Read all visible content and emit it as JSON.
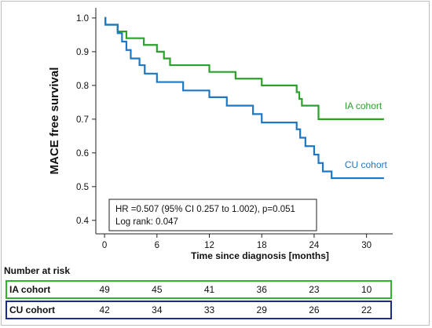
{
  "chart_data": {
    "type": "line",
    "subtype": "kaplan-meier",
    "title": "",
    "xlabel": "Time since diagnosis [months]",
    "ylabel": "MACE free survival",
    "xlim": [
      -1,
      33
    ],
    "ylim": [
      0.36,
      1.03
    ],
    "x_ticks": [
      0,
      6,
      12,
      18,
      24,
      30
    ],
    "y_ticks": [
      0.4,
      0.5,
      0.6,
      0.7,
      0.8,
      0.9,
      1.0
    ],
    "y_tick_labels": [
      "0.4",
      "0.5",
      "0.6",
      "0.7",
      "0.8",
      "0.9",
      "1.0"
    ],
    "grid": false,
    "series": [
      {
        "name": "IA cohort",
        "color": "#2ca02c",
        "steps": [
          [
            0,
            1.0
          ],
          [
            0.1,
            0.98
          ],
          [
            1.5,
            0.96
          ],
          [
            2.5,
            0.94
          ],
          [
            4.5,
            0.92
          ],
          [
            6.0,
            0.9
          ],
          [
            6.8,
            0.88
          ],
          [
            7.5,
            0.86
          ],
          [
            12.0,
            0.84
          ],
          [
            15.0,
            0.82
          ],
          [
            18.0,
            0.8
          ],
          [
            22.0,
            0.78
          ],
          [
            22.3,
            0.76
          ],
          [
            22.6,
            0.74
          ],
          [
            24.5,
            0.7
          ],
          [
            32.0,
            0.7
          ]
        ]
      },
      {
        "name": "CU cohort",
        "color": "#1f77c4",
        "steps": [
          [
            0,
            1.0
          ],
          [
            0.1,
            0.98
          ],
          [
            1.5,
            0.955
          ],
          [
            2.0,
            0.93
          ],
          [
            2.5,
            0.905
          ],
          [
            3.0,
            0.88
          ],
          [
            4.0,
            0.86
          ],
          [
            4.6,
            0.835
          ],
          [
            6.0,
            0.81
          ],
          [
            9.0,
            0.785
          ],
          [
            12.0,
            0.765
          ],
          [
            14.0,
            0.74
          ],
          [
            17.0,
            0.715
          ],
          [
            18.0,
            0.69
          ],
          [
            22.0,
            0.67
          ],
          [
            22.4,
            0.645
          ],
          [
            23.0,
            0.62
          ],
          [
            24.0,
            0.595
          ],
          [
            24.5,
            0.57
          ],
          [
            25.0,
            0.545
          ],
          [
            26.0,
            0.525
          ],
          [
            32.0,
            0.525
          ]
        ]
      }
    ],
    "annotations": {
      "hr_line": "HR =0.507 (95% CI 0.257 to 1.002), p=0.051",
      "logrank_line": "Log rank: 0.047"
    },
    "risk_table": {
      "title": "Number at risk",
      "rows": [
        {
          "label": "IA cohort",
          "border_color": "#2db52d",
          "values": [
            49,
            45,
            41,
            36,
            23,
            10
          ]
        },
        {
          "label": "CU cohort",
          "border_color": "#1c2c8c",
          "values": [
            42,
            34,
            33,
            29,
            26,
            22
          ]
        }
      ]
    }
  }
}
